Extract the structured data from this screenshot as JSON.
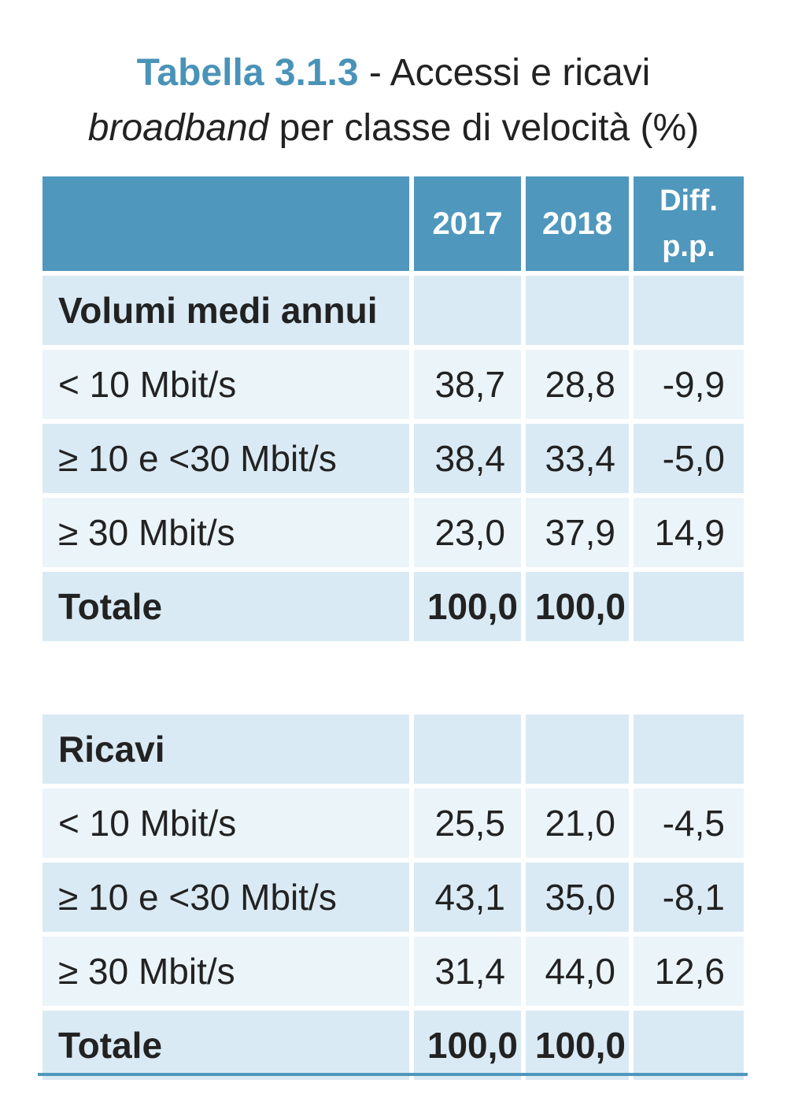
{
  "title": {
    "table_number": "Tabella 3.1.3",
    "line1_rest": " - Accessi e ricavi",
    "line2_italic": "broadband",
    "line2_rest": " per classe di velocità (%)"
  },
  "header": {
    "col_2017": "2017",
    "col_2018": "2018",
    "col_diff_line1": "Diff.",
    "col_diff_line2": "p.p."
  },
  "volumi": {
    "section_label": "Volumi medi annui",
    "rows": [
      {
        "label": "< 10 Mbit/s",
        "v2017": "38,7",
        "v2018": "28,8",
        "diff": "-9,9"
      },
      {
        "label": "≥ 10 e <30 Mbit/s",
        "v2017": "38,4",
        "v2018": "33,4",
        "diff": "-5,0"
      },
      {
        "label": "≥ 30 Mbit/s",
        "v2017": "23,0",
        "v2018": "37,9",
        "diff": "14,9"
      }
    ],
    "total": {
      "label": "Totale",
      "v2017": "100,0",
      "v2018": "100,0",
      "diff": ""
    }
  },
  "ricavi": {
    "section_label": "Ricavi",
    "rows": [
      {
        "label": "< 10 Mbit/s",
        "v2017": "25,5",
        "v2018": "21,0",
        "diff": "-4,5"
      },
      {
        "label": "≥ 10 e <30 Mbit/s",
        "v2017": "43,1",
        "v2018": "35,0",
        "diff": "-8,1"
      },
      {
        "label": "≥ 30 Mbit/s",
        "v2017": "31,4",
        "v2018": "44,0",
        "diff": "12,6"
      }
    ],
    "total": {
      "label": "Totale",
      "v2017": "100,0",
      "v2018": "100,0",
      "diff": ""
    }
  },
  "colors": {
    "accent": "#4a93b8",
    "header_bg": "#4f97bd",
    "row_dark": "#daeaf4",
    "row_light": "#ebf4f9"
  }
}
